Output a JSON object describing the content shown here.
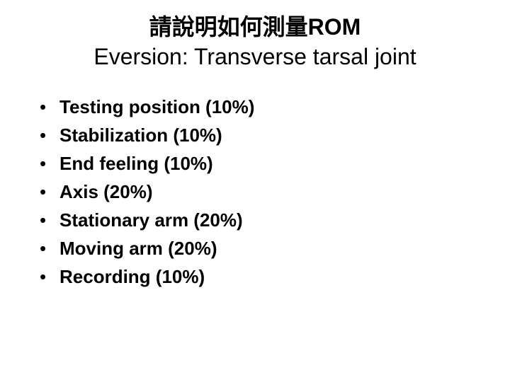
{
  "title": {
    "line1": "請說明如何測量ROM",
    "line2": "Eversion: Transverse tarsal joint"
  },
  "bullets": [
    {
      "text": "Testing position (10%)"
    },
    {
      "text": "Stabilization (10%)"
    },
    {
      "text": "End feeling (10%)"
    },
    {
      "text": "Axis (20%)"
    },
    {
      "text": "Stationary arm (20%)"
    },
    {
      "text": "Moving arm (20%)"
    },
    {
      "text": "Recording (10%)"
    }
  ],
  "style": {
    "background_color": "#ffffff",
    "text_color": "#000000",
    "title_fontsize": 32,
    "title_line1_weight": 700,
    "title_line2_weight": 400,
    "bullet_fontsize": 26,
    "bullet_weight": 700,
    "bullet_marker": "•"
  }
}
